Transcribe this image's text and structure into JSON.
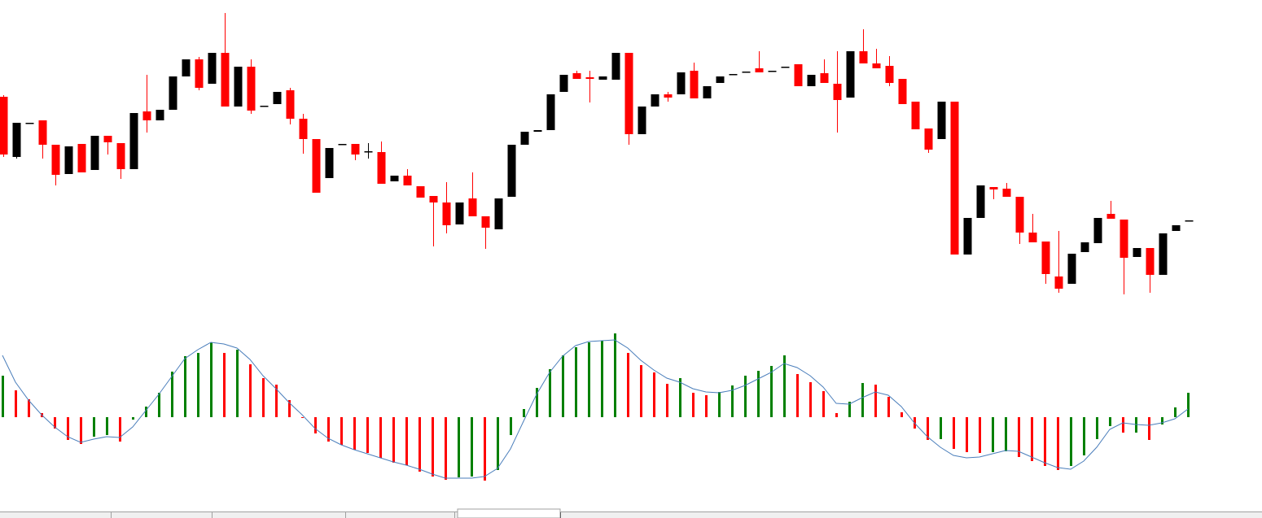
{
  "chart_data": [
    {
      "type": "candlestick",
      "open": [
        281,
        207,
        249,
        252,
        222,
        186,
        223,
        191,
        233,
        224,
        192,
        263,
        252,
        265,
        306,
        327,
        297,
        335,
        269,
        318,
        270,
        272,
        289,
        254,
        229,
        181,
        223,
        223,
        214,
        213,
        177,
        184,
        171,
        159,
        151,
        124,
        156,
        134,
        118,
        158,
        222,
        238,
        240,
        287,
        310,
        305,
        302,
        302,
        335,
        235,
        269,
        284,
        284,
        313,
        279,
        298,
        309,
        312,
        316,
        313,
        318,
        321,
        294,
        310,
        297,
        280,
        337,
        322,
        319,
        303,
        275,
        242,
        229,
        275,
        87,
        132,
        170,
        168,
        158,
        114,
        103,
        60,
        51,
        90,
        101,
        137,
        130,
        84,
        95,
        62,
        116,
        129
      ],
      "high": [
        283,
        249,
        249,
        252,
        222,
        220,
        223,
        233,
        233,
        224,
        261,
        308,
        265,
        306,
        327,
        330,
        335,
        384,
        318,
        327,
        270,
        287,
        292,
        260,
        229,
        218,
        223,
        223,
        224,
        226,
        184,
        192,
        171,
        159,
        176,
        151,
        188,
        134,
        156,
        222,
        238,
        240,
        284,
        308,
        313,
        313,
        306,
        335,
        335,
        269,
        284,
        287,
        311,
        323,
        294,
        306,
        309,
        312,
        337,
        313,
        318,
        321,
        308,
        327,
        337,
        337,
        364,
        340,
        331,
        303,
        275,
        242,
        275,
        275,
        132,
        172,
        170,
        175,
        158,
        137,
        103,
        116,
        88,
        102,
        132,
        153,
        130,
        95,
        95,
        113,
        123,
        129
      ],
      "low": [
        207,
        205,
        249,
        205,
        172,
        186,
        188,
        191,
        210,
        180,
        192,
        237,
        252,
        265,
        306,
        289,
        297,
        269,
        269,
        260,
        270,
        272,
        247,
        211,
        163,
        181,
        223,
        203,
        205,
        174,
        177,
        172,
        157,
        97,
        113,
        124,
        134,
        94,
        118,
        158,
        222,
        238,
        240,
        287,
        303,
        274,
        302,
        302,
        222,
        235,
        269,
        275,
        284,
        279,
        279,
        298,
        309,
        312,
        311,
        313,
        318,
        294,
        294,
        298,
        237,
        280,
        322,
        316,
        294,
        272,
        241,
        212,
        229,
        87,
        87,
        132,
        155,
        158,
        100,
        102,
        51,
        40,
        51,
        90,
        101,
        131,
        38,
        84,
        40,
        62,
        116,
        129
      ],
      "close": [
        210,
        249,
        249,
        222,
        185,
        220,
        188,
        233,
        225,
        192,
        261,
        252,
        265,
        306,
        327,
        292,
        335,
        269,
        318,
        264,
        270,
        287,
        254,
        229,
        163,
        218,
        223,
        210,
        214,
        174,
        184,
        172,
        157,
        151,
        123,
        151,
        134,
        120,
        156,
        222,
        238,
        240,
        284,
        308,
        303,
        303,
        306,
        335,
        235,
        269,
        284,
        280,
        311,
        279,
        294,
        306,
        309,
        312,
        311,
        313,
        318,
        294,
        308,
        298,
        277,
        337,
        322,
        316,
        298,
        272,
        241,
        216,
        275,
        87,
        132,
        172,
        167,
        158,
        114,
        102,
        63,
        45,
        88,
        102,
        132,
        131,
        83,
        95,
        62,
        113,
        123,
        129
      ],
      "up_color": "#000000",
      "down_color": "#ff0000",
      "ylim": [
        0,
        400
      ]
    },
    {
      "type": "histogram-oscillator",
      "values": [
        51,
        33,
        22,
        5,
        -14,
        -28,
        -33,
        -24,
        -22,
        -30,
        -3,
        13,
        30,
        56,
        75,
        79,
        92,
        79,
        83,
        65,
        48,
        40,
        21,
        -1,
        -20,
        -30,
        -34,
        -40,
        -44,
        -50,
        -56,
        -59,
        -67,
        -73,
        -77,
        -74,
        -73,
        -78,
        -65,
        -22,
        10,
        36,
        59,
        76,
        86,
        92,
        94,
        103,
        79,
        64,
        55,
        41,
        48,
        30,
        27,
        31,
        39,
        51,
        57,
        63,
        76,
        53,
        43,
        32,
        5,
        19,
        42,
        40,
        25,
        6,
        -14,
        -28,
        -27,
        -39,
        -43,
        -44,
        -43,
        -42,
        -49,
        -54,
        -60,
        -65,
        -60,
        -47,
        -27,
        -11,
        -19,
        -19,
        -28,
        -9,
        12,
        30
      ],
      "signal_values": [
        76,
        43,
        21,
        3,
        -12,
        -24,
        -31,
        -27,
        -24,
        -25,
        -12,
        8,
        28,
        50,
        72,
        83,
        92,
        90,
        85,
        71,
        51,
        35,
        18,
        3,
        -14,
        -26,
        -34,
        -40,
        -45,
        -50,
        -55,
        -59,
        -64,
        -70,
        -75,
        -75,
        -75,
        -73,
        -63,
        -39,
        -5,
        28,
        55,
        75,
        88,
        93,
        94,
        95,
        85,
        70,
        58,
        48,
        43,
        35,
        31,
        30,
        33,
        39,
        47,
        55,
        66,
        61,
        51,
        37,
        17,
        16,
        24,
        31,
        27,
        13,
        -7,
        -24,
        -37,
        -47,
        -50,
        -49,
        -45,
        -41,
        -42,
        -49,
        -56,
        -62,
        -64,
        -54,
        -37,
        -15,
        -7,
        -9,
        -10,
        -7,
        -2,
        10
      ],
      "rise_color": "#008000",
      "fall_color": "#ff0000",
      "line_color": "#4a7ebb",
      "ylim": [
        -100,
        120
      ]
    }
  ]
}
